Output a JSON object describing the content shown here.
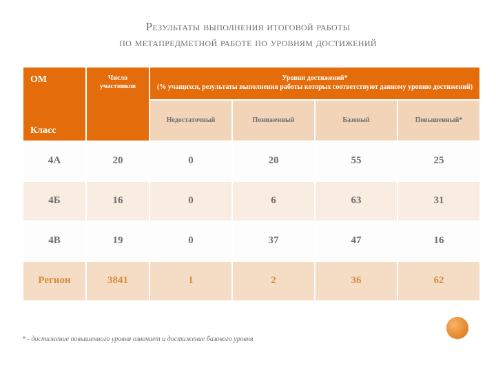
{
  "title": {
    "line1": "Результаты выполнения итоговой работы",
    "line2": "по метапредметной работе по уровням достижений"
  },
  "table": {
    "header": {
      "om_top": "ОМ",
      "om_bottom": "Класс",
      "participants": "Число участников",
      "levels_title": "Уровни достижений*",
      "levels_sub": "(% учащихся, результаты выполнения работы которых соответствуют данному уровню достижений)",
      "col_insufficient": "Недостаточный",
      "col_low": "Пониженный",
      "col_base": "Базовый",
      "col_high": "Повышенный*"
    },
    "rows": [
      {
        "class": "4А",
        "participants": "20",
        "insufficient": "0",
        "low": "20",
        "base": "55",
        "high": "25"
      },
      {
        "class": "4Б",
        "participants": "16",
        "insufficient": "0",
        "low": "6",
        "base": "63",
        "high": "31"
      },
      {
        "class": "4В",
        "participants": "19",
        "insufficient": "0",
        "low": "37",
        "base": "47",
        "high": "16"
      }
    ],
    "region": {
      "class": "Регион",
      "participants": "3841",
      "insufficient": "1",
      "low": "2",
      "base": "36",
      "high": "62"
    }
  },
  "footnote": "* - достижение повышенного уровня означает и достижение базового уровня",
  "colors": {
    "header_bg": "#e46c0a",
    "subheader_bg": "#f2d5b9",
    "row_bg_a": "#fdfdfd",
    "row_bg_b": "#f9ece0",
    "region_bg": "#f5dcc5",
    "text_muted": "#6e6e6e",
    "region_text": "#d58a3f",
    "circle_from": "#f7b46a",
    "circle_to": "#d5761a"
  }
}
